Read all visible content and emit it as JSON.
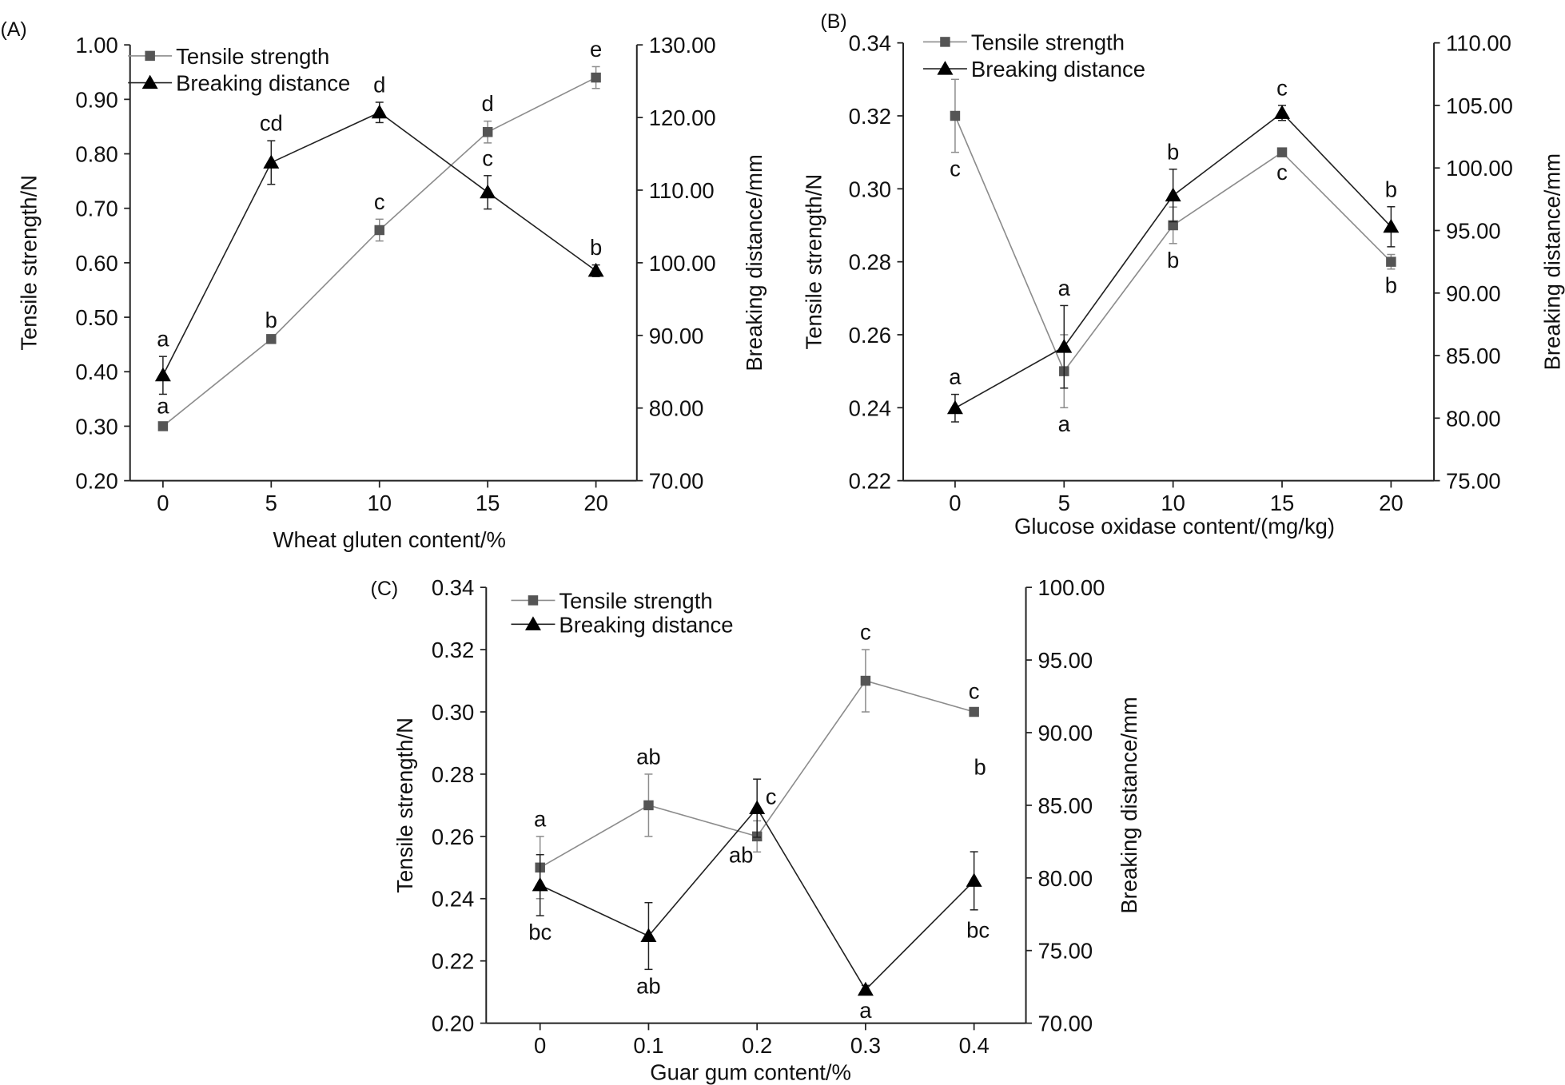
{
  "chart_data": [
    {
      "type": "line",
      "panel_label": "(A)",
      "xlabel": "Wheat gluten content/%",
      "ylabel": "Tensile strength/N",
      "y2label": "Breaking distance/mm",
      "categories": [
        "0",
        "5",
        "10",
        "15",
        "20"
      ],
      "ylim": [
        0.2,
        1.0
      ],
      "yticks": [
        "0.20",
        "0.30",
        "0.40",
        "0.50",
        "0.60",
        "0.70",
        "0.80",
        "0.90",
        "1.00"
      ],
      "y2lim": [
        70,
        130
      ],
      "y2ticks": [
        "70.00",
        "80.00",
        "90.00",
        "100.00",
        "110.00",
        "120.00",
        "130.00"
      ],
      "series": [
        {
          "name": "Tensile strength",
          "axis": "left",
          "marker": "square",
          "color": "#8c8c8c",
          "values": [
            0.3,
            0.46,
            0.66,
            0.84,
            0.94
          ],
          "errors": [
            0.005,
            0.003,
            0.02,
            0.02,
            0.02
          ],
          "labels": [
            "a",
            "b",
            "c",
            "d",
            "e"
          ]
        },
        {
          "name": "Breaking distance",
          "axis": "right",
          "marker": "triangle",
          "color": "#222222",
          "values": [
            84.5,
            113.8,
            120.7,
            109.7,
            98.9
          ],
          "errors": [
            2.6,
            3.0,
            1.4,
            2.3,
            0.8
          ],
          "labels": [
            "a",
            "cd",
            "d",
            "c",
            "b"
          ]
        }
      ]
    },
    {
      "type": "line",
      "panel_label": "(B)",
      "xlabel": "Glucose oxidase content/(mg/kg)",
      "ylabel": "Tensile strength/N",
      "y2label": "Breaking distance/mm",
      "categories": [
        "0",
        "5",
        "10",
        "15",
        "20"
      ],
      "ylim": [
        0.22,
        0.34
      ],
      "yticks": [
        "0.22",
        "0.24",
        "0.26",
        "0.28",
        "0.30",
        "0.32",
        "0.34"
      ],
      "y2lim": [
        75,
        110
      ],
      "y2ticks": [
        "75.00",
        "80.00",
        "85.00",
        "90.00",
        "95.00",
        "100.00",
        "105.00",
        "110.00"
      ],
      "series": [
        {
          "name": "Tensile strength",
          "axis": "left",
          "marker": "square",
          "color": "#8c8c8c",
          "values": [
            0.32,
            0.25,
            0.29,
            0.31,
            0.28
          ],
          "errors": [
            0.01,
            0.01,
            0.005,
            0.001,
            0.002
          ],
          "labels": [
            "c",
            "a",
            "b",
            "c",
            "b"
          ]
        },
        {
          "name": "Breaking distance",
          "axis": "right",
          "marker": "triangle",
          "color": "#222222",
          "values": [
            80.8,
            85.7,
            97.8,
            104.4,
            95.3
          ],
          "errors": [
            1.1,
            3.3,
            2.1,
            0.6,
            1.6
          ],
          "labels": [
            "a",
            "a",
            "b",
            "c",
            "b"
          ]
        }
      ]
    },
    {
      "type": "line",
      "panel_label": "(C)",
      "xlabel": "Guar gum content/%",
      "ylabel": "Tensile strength/N",
      "y2label": "Breaking distance/mm",
      "categories": [
        "0",
        "0.1",
        "0.2",
        "0.3",
        "0.4"
      ],
      "ylim": [
        0.2,
        0.34
      ],
      "yticks": [
        "0.20",
        "0.22",
        "0.24",
        "0.26",
        "0.28",
        "0.30",
        "0.32",
        "0.34"
      ],
      "y2lim": [
        70,
        100
      ],
      "y2ticks": [
        "70.00",
        "75.00",
        "80.00",
        "85.00",
        "90.00",
        "95.00",
        "100.00"
      ],
      "series": [
        {
          "name": "Tensile strength",
          "axis": "left",
          "marker": "square",
          "color": "#8c8c8c",
          "values": [
            0.25,
            0.27,
            0.26,
            0.31,
            0.3
          ],
          "errors": [
            0.01,
            0.01,
            0.005,
            0.01,
            0.001
          ],
          "labels": [
            "a",
            "ab",
            "ab",
            "c",
            "c"
          ]
        },
        {
          "name": "Breaking distance",
          "axis": "right",
          "marker": "triangle",
          "color": "#222222",
          "values": [
            79.5,
            76.0,
            84.8,
            72.3,
            79.8
          ],
          "errors": [
            2.1,
            2.3,
            2.0,
            0.3,
            2.0
          ],
          "labels": [
            "bc",
            "ab",
            "c",
            "a",
            "b"
          ],
          "extra_labels": [
            "bc"
          ]
        }
      ]
    }
  ]
}
